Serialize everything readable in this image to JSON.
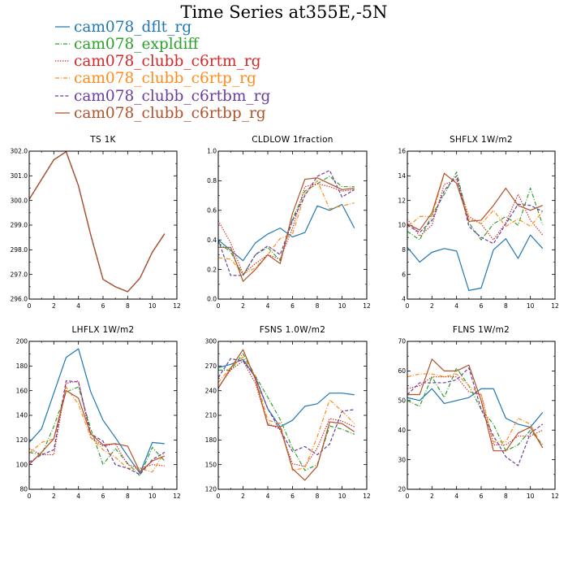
{
  "title": "Time Series at355E,-5N",
  "legend": [
    {
      "name": "cam078_dflt_rg",
      "color": "#1f77b4",
      "dash": "solid"
    },
    {
      "name": "cam078_expldiff",
      "color": "#2ca02c",
      "dash": "dashdot"
    },
    {
      "name": "cam078_clubb_c6rtm_rg",
      "color": "#d62728",
      "dash": "dot"
    },
    {
      "name": "cam078_clubb_c6rtp_rg",
      "color": "#ff8c1a",
      "dash": "dashdot"
    },
    {
      "name": "cam078_clubb_c6rtbm_rg",
      "color": "#6a3d9a",
      "dash": "dash"
    },
    {
      "name": "cam078_clubb_c6rtbp_rg",
      "color": "#b0522a",
      "dash": "solid"
    }
  ],
  "chart_data": [
    {
      "type": "line",
      "title": "TS   1K",
      "xlim": [
        0,
        12
      ],
      "ylim": [
        296.0,
        302.0
      ],
      "xticks": [
        0,
        2,
        4,
        6,
        8,
        10,
        12
      ],
      "yticks": [
        296.0,
        297.0,
        298.0,
        299.0,
        300.0,
        301.0,
        302.0
      ],
      "ytick_labels": [
        "296.0",
        "297.0",
        "298.0",
        "299.0",
        "300.0",
        "301.0",
        "302.0"
      ],
      "x": [
        0,
        1,
        2,
        3,
        4,
        5,
        6,
        7,
        8,
        9,
        10,
        11
      ],
      "series": [
        {
          "name": "cam078_dflt_rg",
          "values": [
            300.05,
            300.85,
            301.65,
            301.98,
            300.6,
            298.6,
            296.8,
            296.5,
            296.3,
            296.85,
            297.9,
            298.65
          ]
        },
        {
          "name": "cam078_expldiff",
          "values": [
            300.05,
            300.85,
            301.65,
            301.98,
            300.6,
            298.6,
            296.8,
            296.5,
            296.3,
            296.85,
            297.9,
            298.65
          ]
        },
        {
          "name": "cam078_clubb_c6rtm_rg",
          "values": [
            300.05,
            300.85,
            301.65,
            301.98,
            300.6,
            298.6,
            296.8,
            296.5,
            296.3,
            296.85,
            297.9,
            298.65
          ]
        },
        {
          "name": "cam078_clubb_c6rtp_rg",
          "values": [
            300.05,
            300.85,
            301.65,
            301.98,
            300.6,
            298.6,
            296.8,
            296.5,
            296.3,
            296.85,
            297.9,
            298.65
          ]
        },
        {
          "name": "cam078_clubb_c6rtbm_rg",
          "values": [
            300.05,
            300.85,
            301.65,
            301.98,
            300.6,
            298.6,
            296.8,
            296.5,
            296.3,
            296.85,
            297.9,
            298.65
          ]
        },
        {
          "name": "cam078_clubb_c6rtbp_rg",
          "values": [
            300.05,
            300.85,
            301.65,
            301.98,
            300.6,
            298.6,
            296.8,
            296.5,
            296.3,
            296.85,
            297.9,
            298.65
          ]
        }
      ]
    },
    {
      "type": "line",
      "title": "CLDLOW   1fraction",
      "xlim": [
        0,
        12
      ],
      "ylim": [
        0.0,
        1.0
      ],
      "xticks": [
        0,
        2,
        4,
        6,
        8,
        10,
        12
      ],
      "yticks": [
        0.0,
        0.2,
        0.4,
        0.6,
        0.8,
        1.0
      ],
      "ytick_labels": [
        "0.0",
        "0.2",
        "0.4",
        "0.6",
        "0.8",
        "1.0"
      ],
      "x": [
        0,
        1,
        2,
        3,
        4,
        5,
        6,
        7,
        8,
        9,
        10,
        11
      ],
      "series": [
        {
          "name": "cam078_dflt_rg",
          "values": [
            0.4,
            0.33,
            0.26,
            0.38,
            0.44,
            0.48,
            0.42,
            0.45,
            0.63,
            0.6,
            0.64,
            0.48
          ]
        },
        {
          "name": "cam078_expldiff",
          "values": [
            0.38,
            0.32,
            0.16,
            0.3,
            0.35,
            0.26,
            0.54,
            0.73,
            0.78,
            0.83,
            0.76,
            0.76
          ]
        },
        {
          "name": "cam078_clubb_c6rtm_rg",
          "values": [
            0.53,
            0.38,
            0.17,
            0.24,
            0.3,
            0.27,
            0.48,
            0.76,
            0.78,
            0.76,
            0.73,
            0.74
          ]
        },
        {
          "name": "cam078_clubb_c6rtp_rg",
          "values": [
            0.28,
            0.27,
            0.17,
            0.21,
            0.3,
            0.41,
            0.44,
            0.71,
            0.8,
            0.61,
            0.63,
            0.65
          ]
        },
        {
          "name": "cam078_clubb_c6rtbm_rg",
          "values": [
            0.4,
            0.16,
            0.16,
            0.3,
            0.36,
            0.3,
            0.53,
            0.7,
            0.83,
            0.87,
            0.69,
            0.74
          ]
        },
        {
          "name": "cam078_clubb_c6rtbp_rg",
          "values": [
            0.35,
            0.35,
            0.12,
            0.2,
            0.3,
            0.24,
            0.58,
            0.81,
            0.82,
            0.78,
            0.74,
            0.75
          ]
        }
      ]
    },
    {
      "type": "line",
      "title": "SHFLX   1W/m2",
      "xlim": [
        0,
        12
      ],
      "ylim": [
        4,
        16
      ],
      "xticks": [
        0,
        2,
        4,
        6,
        8,
        10,
        12
      ],
      "yticks": [
        4,
        6,
        8,
        10,
        12,
        14,
        16
      ],
      "ytick_labels": [
        "4",
        "6",
        "8",
        "10",
        "12",
        "14",
        "16"
      ],
      "x": [
        0,
        1,
        2,
        3,
        4,
        5,
        6,
        7,
        8,
        9,
        10,
        11
      ],
      "series": [
        {
          "name": "cam078_dflt_rg",
          "values": [
            8.2,
            7.0,
            7.8,
            8.1,
            7.9,
            4.7,
            4.9,
            8.0,
            8.9,
            7.3,
            9.2,
            8.1
          ]
        },
        {
          "name": "cam078_expldiff",
          "values": [
            9.5,
            8.8,
            10.8,
            12.5,
            14.3,
            10.2,
            8.8,
            10.1,
            10.7,
            10.0,
            13.0,
            10.0
          ]
        },
        {
          "name": "cam078_clubb_c6rtm_rg",
          "values": [
            10.5,
            9.1,
            10.0,
            13.3,
            13.7,
            10.7,
            10.1,
            8.8,
            10.2,
            12.5,
            10.4,
            9.2
          ]
        },
        {
          "name": "cam078_clubb_c6rtp_rg",
          "values": [
            9.8,
            10.7,
            10.7,
            14.2,
            13.4,
            10.5,
            10.1,
            11.2,
            9.9,
            10.5,
            9.9,
            11.1
          ]
        },
        {
          "name": "cam078_clubb_c6rtbm_rg",
          "values": [
            10.0,
            9.4,
            10.4,
            12.8,
            14.0,
            9.9,
            9.0,
            8.5,
            10.1,
            11.7,
            11.6,
            11.1
          ]
        },
        {
          "name": "cam078_clubb_c6rtbp_rg",
          "values": [
            10.1,
            9.6,
            11.0,
            14.2,
            13.4,
            10.3,
            10.4,
            11.6,
            13.0,
            11.6,
            11.2,
            11.6
          ]
        }
      ]
    },
    {
      "type": "line",
      "title": "LHFLX   1W/m2",
      "xlim": [
        0,
        12
      ],
      "ylim": [
        80,
        200
      ],
      "xticks": [
        0,
        2,
        4,
        6,
        8,
        10,
        12
      ],
      "yticks": [
        80,
        100,
        120,
        140,
        160,
        180,
        200
      ],
      "ytick_labels": [
        "80",
        "100",
        "120",
        "140",
        "160",
        "180",
        "200"
      ],
      "x": [
        0,
        1,
        2,
        3,
        4,
        5,
        6,
        7,
        8,
        9,
        10,
        11
      ],
      "series": [
        {
          "name": "cam078_dflt_rg",
          "values": [
            118,
            129,
            158,
            187,
            194,
            159,
            136,
            122,
            107,
            93,
            118,
            117
          ]
        },
        {
          "name": "cam078_expldiff",
          "values": [
            110,
            108,
            131,
            159,
            163,
            129,
            100,
            113,
            101,
            91,
            114,
            103
          ]
        },
        {
          "name": "cam078_clubb_c6rtm_rg",
          "values": [
            113,
            108,
            108,
            166,
            168,
            122,
            115,
            117,
            100,
            97,
            100,
            99
          ]
        },
        {
          "name": "cam078_clubb_c6rtp_rg",
          "values": [
            109,
            118,
            121,
            163,
            149,
            122,
            112,
            106,
            97,
            97,
            94,
            110
          ]
        },
        {
          "name": "cam078_clubb_c6rtbm_rg",
          "values": [
            102,
            108,
            112,
            168,
            167,
            125,
            119,
            100,
            97,
            92,
            104,
            110
          ]
        },
        {
          "name": "cam078_clubb_c6rtbp_rg",
          "values": [
            100,
            110,
            121,
            160,
            154,
            125,
            116,
            117,
            115,
            94,
            103,
            107
          ]
        }
      ]
    },
    {
      "type": "line",
      "title": "FSNS   1.0W/m2",
      "xlim": [
        0,
        12
      ],
      "ylim": [
        120,
        300
      ],
      "xticks": [
        0,
        2,
        4,
        6,
        8,
        10,
        12
      ],
      "yticks": [
        120,
        150,
        180,
        210,
        240,
        270,
        300
      ],
      "ytick_labels": [
        "120",
        "150",
        "180",
        "210",
        "240",
        "270",
        "300"
      ],
      "x": [
        0,
        1,
        2,
        3,
        4,
        5,
        6,
        7,
        8,
        9,
        10,
        11
      ],
      "series": [
        {
          "name": "cam078_dflt_rg",
          "values": [
            268,
            272,
            278,
            256,
            218,
            196,
            204,
            221,
            224,
            237,
            237,
            235
          ]
        },
        {
          "name": "cam078_expldiff",
          "values": [
            265,
            265,
            285,
            258,
            232,
            205,
            170,
            143,
            150,
            197,
            193,
            187
          ]
        },
        {
          "name": "cam078_clubb_c6rtm_rg",
          "values": [
            244,
            265,
            276,
            249,
            200,
            193,
            151,
            148,
            170,
            206,
            203,
            196
          ]
        },
        {
          "name": "cam078_clubb_c6rtp_rg",
          "values": [
            250,
            268,
            281,
            258,
            204,
            200,
            143,
            146,
            184,
            229,
            215,
            200
          ]
        },
        {
          "name": "cam078_clubb_c6rtbm_rg",
          "values": [
            256,
            279,
            276,
            257,
            218,
            192,
            166,
            172,
            162,
            175,
            215,
            217
          ]
        },
        {
          "name": "cam078_clubb_c6rtbp_rg",
          "values": [
            243,
            267,
            290,
            254,
            198,
            196,
            145,
            131,
            148,
            202,
            200,
            190
          ]
        }
      ]
    },
    {
      "type": "line",
      "title": "FLNS   1W/m2",
      "xlim": [
        0,
        12
      ],
      "ylim": [
        20,
        70
      ],
      "xticks": [
        0,
        2,
        4,
        6,
        8,
        10,
        12
      ],
      "yticks": [
        20,
        30,
        40,
        50,
        60,
        70
      ],
      "ytick_labels": [
        "20",
        "30",
        "40",
        "50",
        "60",
        "70"
      ],
      "x": [
        0,
        1,
        2,
        3,
        4,
        5,
        6,
        7,
        8,
        9,
        10,
        11
      ],
      "series": [
        {
          "name": "cam078_dflt_rg",
          "values": [
            51,
            50,
            54,
            49,
            50,
            51,
            54,
            54,
            44,
            42,
            41,
            46
          ]
        },
        {
          "name": "cam078_expldiff",
          "values": [
            50,
            48,
            58,
            51,
            61,
            55,
            47,
            42,
            33,
            35,
            40,
            35
          ]
        },
        {
          "name": "cam078_clubb_c6rtm_rg",
          "values": [
            54,
            55,
            58,
            58,
            58,
            53,
            52,
            35,
            35,
            38,
            38,
            40
          ]
        },
        {
          "name": "cam078_clubb_c6rtp_rg",
          "values": [
            58,
            59,
            59,
            58,
            59,
            55,
            52,
            36,
            36,
            44,
            42,
            34
          ]
        },
        {
          "name": "cam078_clubb_c6rtbm_rg",
          "values": [
            52,
            56,
            56,
            56,
            57,
            61,
            47,
            38,
            31,
            28,
            39,
            42
          ]
        },
        {
          "name": "cam078_clubb_c6rtbp_rg",
          "values": [
            52,
            52,
            64,
            60,
            60,
            62,
            50,
            33,
            33,
            39,
            41,
            34
          ]
        }
      ]
    }
  ]
}
